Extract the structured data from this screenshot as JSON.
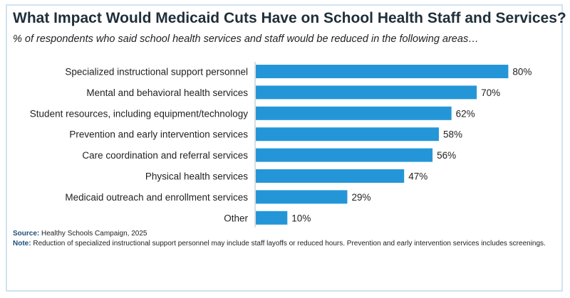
{
  "chart_data": {
    "type": "bar",
    "orientation": "horizontal",
    "title": "What Impact Would Medicaid Cuts Have on School Health Staff and Services?",
    "subtitle": "% of respondents who said school health services and staff would be reduced in the following areas…",
    "categories": [
      "Specialized instructional support personnel",
      "Mental and behavioral health services",
      "Student resources, including equipment/technology",
      "Prevention and early intervention services",
      "Care coordination and referral services",
      "Physical health services",
      "Medicaid outreach and enrollment services",
      "Other"
    ],
    "values": [
      80,
      70,
      62,
      58,
      56,
      47,
      29,
      10
    ],
    "value_labels": [
      "80%",
      "70%",
      "62%",
      "58%",
      "56%",
      "47%",
      "29%",
      "10%"
    ],
    "unit": "%",
    "xlim": [
      0,
      100
    ],
    "bar_color": "#2496d8"
  },
  "source": {
    "label": "Source:",
    "text": "Healthy Schools Campaign, 2025"
  },
  "note": {
    "label": "Note:",
    "text": "Reduction of specialized instructional support personnel may include staff layoffs or reduced hours. Prevention and early intervention services includes screenings."
  }
}
